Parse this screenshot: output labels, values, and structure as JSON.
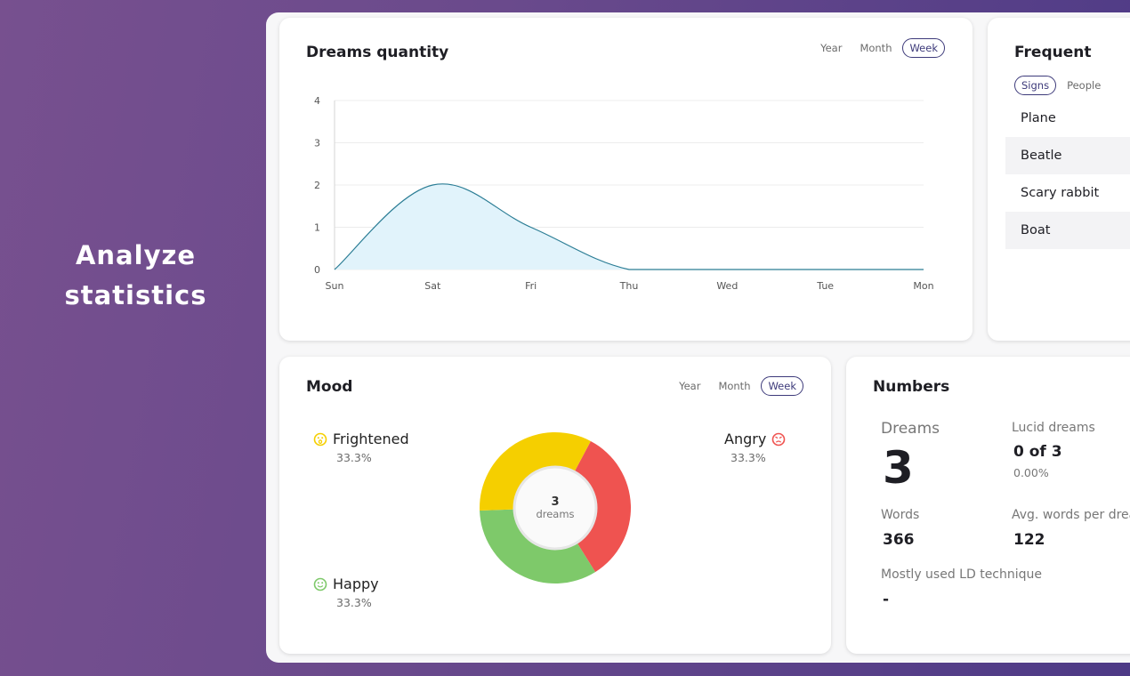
{
  "hero": {
    "line1": "Analyze",
    "line2": "statistics"
  },
  "dreams_card": {
    "title": "Dreams quantity",
    "toggles": [
      "Year",
      "Month",
      "Week"
    ],
    "active_toggle": "Week"
  },
  "chart_data": {
    "type": "area",
    "title": "Dreams quantity",
    "categories": [
      "Sun",
      "Sat",
      "Fri",
      "Thu",
      "Wed",
      "Tue",
      "Mon"
    ],
    "values": [
      0,
      2,
      1,
      0,
      0,
      0,
      0
    ],
    "ylim": [
      0,
      4
    ],
    "yticks": [
      "0",
      "1",
      "2",
      "3",
      "4"
    ],
    "grid": true,
    "fill_color": "#e1f3fb",
    "line_color": "#2b7d95"
  },
  "frequent_card": {
    "title": "Frequent",
    "tabs": [
      "Signs",
      "People"
    ],
    "active_tab": "Signs",
    "items": [
      "Plane",
      "Beatle",
      "Scary rabbit",
      "Boat"
    ]
  },
  "mood_card": {
    "title": "Mood",
    "toggles": [
      "Year",
      "Month",
      "Week"
    ],
    "active_toggle": "Week",
    "center_count": "3",
    "center_label": "dreams",
    "moods": [
      {
        "name": "Frightened",
        "pct": "33.3%",
        "color": "#f5cf00",
        "icon": "frightened-face-icon"
      },
      {
        "name": "Angry",
        "pct": "33.3%",
        "color": "#ef5350",
        "icon": "angry-face-icon"
      },
      {
        "name": "Happy",
        "pct": "33.3%",
        "color": "#7ec96a",
        "icon": "happy-face-icon"
      }
    ]
  },
  "numbers_card": {
    "title": "Numbers",
    "dreams_label": "Dreams",
    "dreams_value": "3",
    "lucid_label": "Lucid dreams",
    "lucid_value": "0 of 3",
    "lucid_pct": "0.00%",
    "words_label": "Words",
    "words_value": "366",
    "avg_label": "Avg. words per dream",
    "avg_value": "122",
    "technique_label": "Mostly used LD technique",
    "technique_value": "-"
  }
}
